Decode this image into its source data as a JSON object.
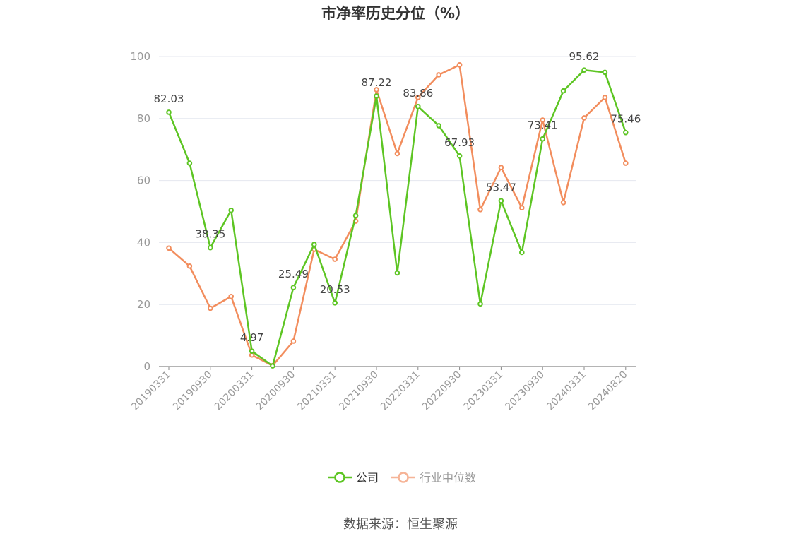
{
  "chart_data": {
    "type": "line",
    "title": "市净率历史分位（%）",
    "source": "数据来源：恒生聚源",
    "ylim": [
      0,
      100
    ],
    "yticks": [
      0,
      20,
      40,
      60,
      80,
      100
    ],
    "x_tick_labels": [
      "20190331",
      "20190930",
      "20200331",
      "20200930",
      "20210331",
      "20210930",
      "20220331",
      "20220930",
      "20230331",
      "20230930",
      "20240331",
      "20240820"
    ],
    "x": [
      "20190331",
      "20190630",
      "20190930",
      "20191231",
      "20200331",
      "20200630",
      "20200930",
      "20201231",
      "20210331",
      "20210630",
      "20210930",
      "20211231",
      "20220331",
      "20220630",
      "20220930",
      "20221231",
      "20230331",
      "20230630",
      "20230930",
      "20231231",
      "20240331",
      "20240630",
      "20240820"
    ],
    "series": [
      {
        "name": "公司",
        "color": "#5dc523",
        "values": [
          82.03,
          65.6,
          38.35,
          50.4,
          4.97,
          0.2,
          25.49,
          39.4,
          20.53,
          48.7,
          87.22,
          30.2,
          83.86,
          77.7,
          67.93,
          20.2,
          53.47,
          36.8,
          73.41,
          88.9,
          95.62,
          94.9,
          75.46
        ],
        "labels": [
          "82.03",
          "",
          "38.35",
          "",
          "4.97",
          "",
          "25.49",
          "",
          "20.53",
          "",
          "87.22",
          "",
          "83.86",
          "",
          "67.93",
          "",
          "53.47",
          "",
          "73.41",
          "",
          "95.62",
          "",
          "75.46"
        ]
      },
      {
        "name": "行业中位数",
        "color": "#f28d5d",
        "values": [
          38.2,
          32.4,
          18.8,
          22.6,
          3.7,
          0.3,
          8.2,
          37.8,
          34.6,
          46.9,
          89.3,
          68.7,
          86.8,
          94.1,
          97.3,
          50.6,
          64.2,
          51.2,
          79.5,
          52.9,
          80.2,
          86.8,
          65.6
        ]
      }
    ],
    "legend": {
      "position": "bottom",
      "items": [
        {
          "name": "公司",
          "color": "#5dc523",
          "text_color": "#333333"
        },
        {
          "name": "行业中位数",
          "color": "#f6b497",
          "text_color": "#999999"
        }
      ]
    },
    "grid": true
  }
}
